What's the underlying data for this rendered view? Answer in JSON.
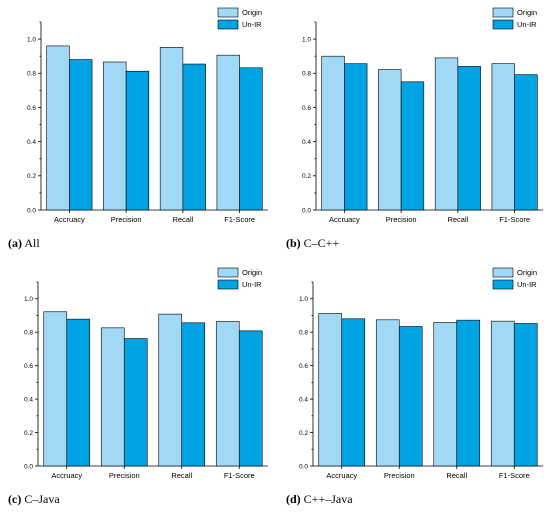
{
  "colors": {
    "origin": "#a0d8f5",
    "unir": "#00a4e4"
  },
  "chart_data": [
    {
      "type": "bar",
      "caption_tag": "(a)",
      "caption_text": "All",
      "categories": [
        "Accruacy",
        "Precision",
        "Recall",
        "F1-Score"
      ],
      "series": [
        {
          "name": "Origin",
          "values": [
            0.96,
            0.866,
            0.952,
            0.906
          ]
        },
        {
          "name": "Un-IR",
          "values": [
            0.88,
            0.812,
            0.854,
            0.832
          ]
        }
      ],
      "yticks": [
        "0.0",
        "0.2",
        "0.4",
        "0.6",
        "0.8",
        "1.0"
      ],
      "ylim": [
        0,
        1.1
      ],
      "legend": "top-right",
      "grid": false
    },
    {
      "type": "bar",
      "caption_tag": "(b)",
      "caption_text": "C–C++",
      "categories": [
        "Accruacy",
        "Precision",
        "Recall",
        "F1-Score"
      ],
      "series": [
        {
          "name": "Origin",
          "values": [
            0.9,
            0.822,
            0.89,
            0.856
          ]
        },
        {
          "name": "Un-IR",
          "values": [
            0.856,
            0.75,
            0.84,
            0.792
          ]
        }
      ],
      "yticks": [
        "0.0",
        "0.2",
        "0.4",
        "0.6",
        "0.8",
        "1.0"
      ],
      "ylim": [
        0,
        1.1
      ],
      "legend": "top-right",
      "grid": false
    },
    {
      "type": "bar",
      "caption_tag": "(c)",
      "caption_text": "C–Java",
      "categories": [
        "Accruacy",
        "Precision",
        "Recall",
        "F1-Score"
      ],
      "series": [
        {
          "name": "Origin",
          "values": [
            0.922,
            0.826,
            0.908,
            0.864
          ]
        },
        {
          "name": "Un-IR",
          "values": [
            0.878,
            0.762,
            0.856,
            0.808
          ]
        }
      ],
      "yticks": [
        "0.0",
        "0.2",
        "0.4",
        "0.6",
        "0.8",
        "1.0"
      ],
      "ylim": [
        0,
        1.1
      ],
      "legend": "top-right",
      "grid": false
    },
    {
      "type": "bar",
      "caption_tag": "(d)",
      "caption_text": "C++–Java",
      "categories": [
        "Accruacy",
        "Precision",
        "Recall",
        "F1-Score"
      ],
      "series": [
        {
          "name": "Origin",
          "values": [
            0.912,
            0.874,
            0.858,
            0.866
          ]
        },
        {
          "name": "Un-IR",
          "values": [
            0.88,
            0.834,
            0.872,
            0.852
          ]
        }
      ],
      "yticks": [
        "0.0",
        "0.2",
        "0.4",
        "0.6",
        "0.8",
        "1.0"
      ],
      "ylim": [
        0,
        1.1
      ],
      "legend": "top-right",
      "grid": false
    }
  ]
}
